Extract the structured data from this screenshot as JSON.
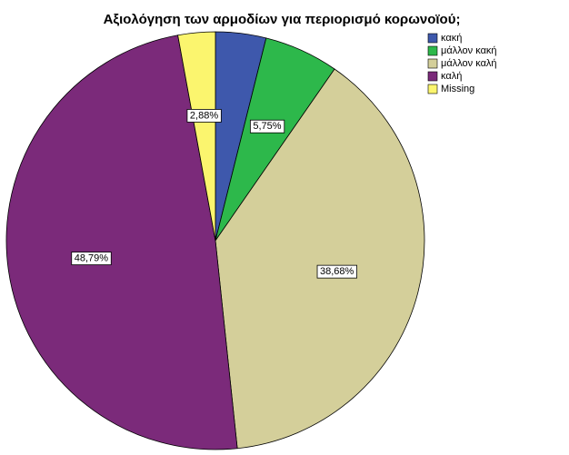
{
  "chart_data": {
    "type": "pie",
    "title": "Αξιολόγηση των αρμοδίων για περιορισμό κορωνοϊού;",
    "categories": [
      "κακή",
      "μάλλον κακή",
      "μάλλον καλή",
      "καλή",
      "Missing"
    ],
    "values": [
      3.9,
      5.75,
      38.68,
      48.79,
      2.88
    ],
    "value_labels": [
      null,
      "5,75%",
      "38,68%",
      "48,79%",
      "2,88%"
    ],
    "colors": [
      "#3e58ac",
      "#2db84b",
      "#d4cf9a",
      "#7b2a7a",
      "#fbf56e"
    ]
  }
}
